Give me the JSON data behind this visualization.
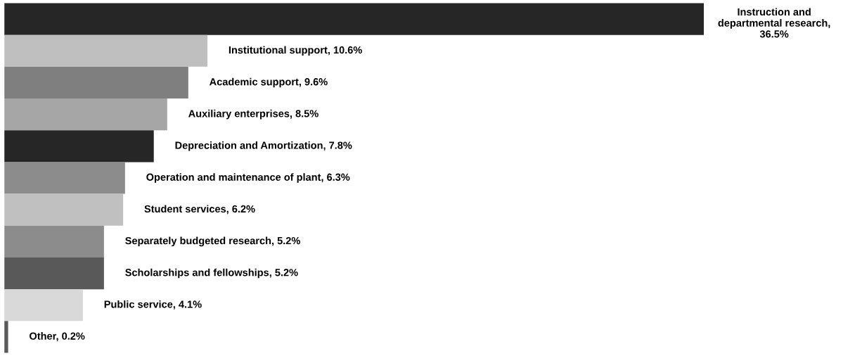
{
  "chart_data": {
    "type": "bar",
    "orientation": "horizontal",
    "categories": [
      null,
      null,
      null,
      null,
      null,
      null,
      null,
      null,
      null,
      null,
      null
    ],
    "values": [
      36.5,
      10.6,
      9.6,
      8.5,
      7.8,
      6.3,
      6.2,
      5.2,
      5.2,
      4.1,
      0.2
    ],
    "value_labels": [
      "Instruction and departmental research, 36.5%",
      "Institutional support, 10.6%",
      "Academic support, 9.6%",
      "Auxiliary enterprises, 8.5%",
      "Depreciation and Amortization, 7.8%",
      "Operation and maintenance of plant, 6.3%",
      "Student services, 6.2%",
      "Separately budgeted research, 5.2%",
      "Scholarships and fellowships, 5.2%",
      "Public service, 4.1%",
      "Other, 0.2%"
    ],
    "colors": [
      "#262626",
      "#bfbfbf",
      "#7f7f7f",
      "#a6a6a6",
      "#262626",
      "#8c8c8c",
      "#c0c0c0",
      "#8c8c8c",
      "#595959",
      "#d9d9d9",
      "#595959"
    ]
  }
}
